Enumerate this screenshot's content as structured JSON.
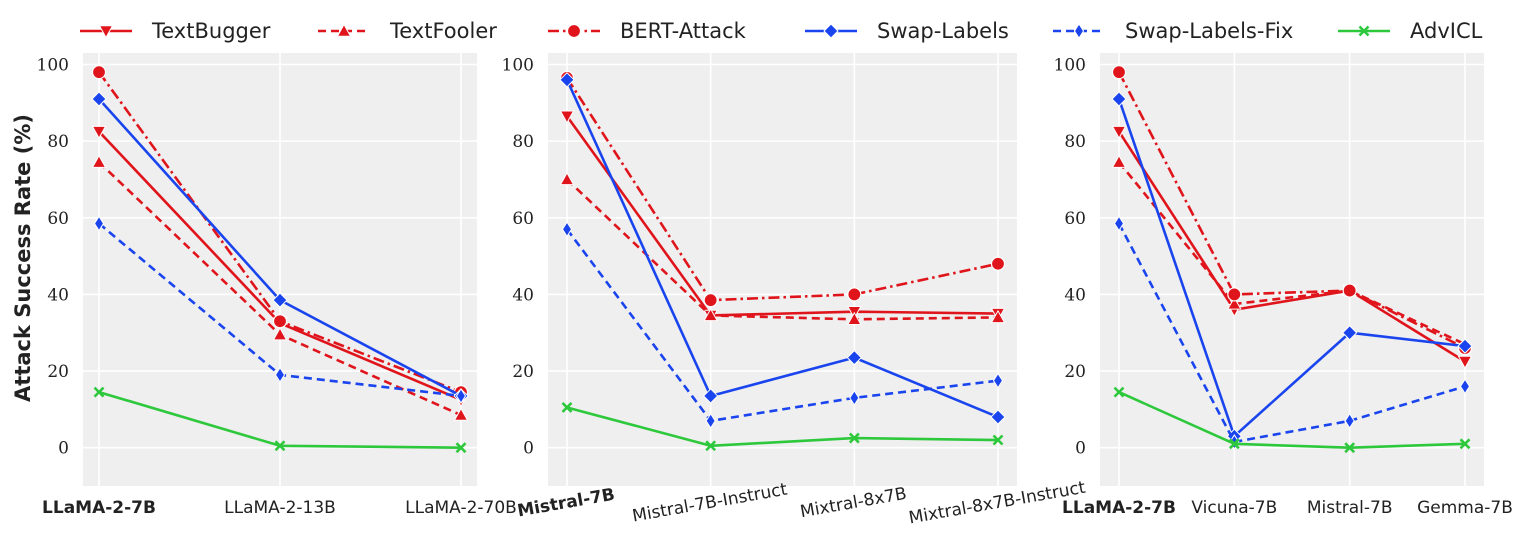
{
  "chart_data": {
    "type": "line",
    "ylabel": "Attack Success Rate (%)",
    "ylim": [
      -10,
      103
    ],
    "yticks": [
      "0",
      "20",
      "40",
      "60",
      "80",
      "100"
    ],
    "grid": true,
    "legend_placement": "top",
    "series_styles": [
      {
        "name": "TextBugger",
        "color": "#e0151c",
        "dash": "solid",
        "marker": "triangle-down"
      },
      {
        "name": "TextFooler",
        "color": "#e0151c",
        "dash": "dashed",
        "marker": "triangle-up"
      },
      {
        "name": "BERT-Attack",
        "color": "#e0151c",
        "dash": "dashdot",
        "marker": "circle"
      },
      {
        "name": "Swap-Labels",
        "color": "#1a45ee",
        "dash": "solid",
        "marker": "diamond"
      },
      {
        "name": "Swap-Labels-Fix",
        "color": "#1a45ee",
        "dash": "dashed",
        "marker": "thin-diamond"
      },
      {
        "name": "AdvICL",
        "color": "#2ec83c",
        "dash": "solid",
        "marker": "x"
      }
    ],
    "panels": [
      {
        "categories": [
          "LLaMA-2-7B",
          "LLaMA-2-13B",
          "LLaMA-2-70B"
        ],
        "bold_category": "LLaMA-2-7B",
        "rotate_labels": false,
        "series": [
          {
            "name": "TextBugger",
            "values": [
              82.5,
              32.5,
              12.5
            ]
          },
          {
            "name": "TextFooler",
            "values": [
              74.5,
              29.5,
              8.5
            ]
          },
          {
            "name": "BERT-Attack",
            "values": [
              98,
              33,
              14.5
            ]
          },
          {
            "name": "Swap-Labels",
            "values": [
              91,
              38.5,
              13.5
            ]
          },
          {
            "name": "Swap-Labels-Fix",
            "values": [
              58.5,
              19,
              13.5
            ]
          },
          {
            "name": "AdvICL",
            "values": [
              14.5,
              0.5,
              0
            ]
          }
        ]
      },
      {
        "categories": [
          "Mistral-7B",
          "Mistral-7B-Instruct",
          "Mixtral-8x7B",
          "Mixtral-8x7B-Instruct"
        ],
        "bold_category": "Mistral-7B",
        "rotate_labels": true,
        "series": [
          {
            "name": "TextBugger",
            "values": [
              86.5,
              34.5,
              35.5,
              35
            ]
          },
          {
            "name": "TextFooler",
            "values": [
              70,
              34.5,
              33.5,
              34
            ]
          },
          {
            "name": "BERT-Attack",
            "values": [
              96.5,
              38.5,
              40,
              48
            ]
          },
          {
            "name": "Swap-Labels",
            "values": [
              96,
              13.5,
              23.5,
              8
            ]
          },
          {
            "name": "Swap-Labels-Fix",
            "values": [
              57,
              7,
              13,
              17.5
            ]
          },
          {
            "name": "AdvICL",
            "values": [
              10.5,
              0.5,
              2.5,
              2
            ]
          }
        ]
      },
      {
        "categories": [
          "LLaMA-2-7B",
          "Vicuna-7B",
          "Mistral-7B",
          "Gemma-7B"
        ],
        "bold_category": "LLaMA-2-7B",
        "rotate_labels": false,
        "series": [
          {
            "name": "TextBugger",
            "values": [
              82.5,
              36,
              41,
              22.5
            ]
          },
          {
            "name": "TextFooler",
            "values": [
              74.5,
              37.5,
              41,
              27
            ]
          },
          {
            "name": "BERT-Attack",
            "values": [
              98,
              40,
              41,
              26
            ]
          },
          {
            "name": "Swap-Labels",
            "values": [
              91,
              3,
              30,
              26.5
            ]
          },
          {
            "name": "Swap-Labels-Fix",
            "values": [
              58.5,
              1.5,
              7,
              16
            ]
          },
          {
            "name": "AdvICL",
            "values": [
              14.5,
              1,
              0,
              1
            ]
          }
        ]
      }
    ]
  }
}
